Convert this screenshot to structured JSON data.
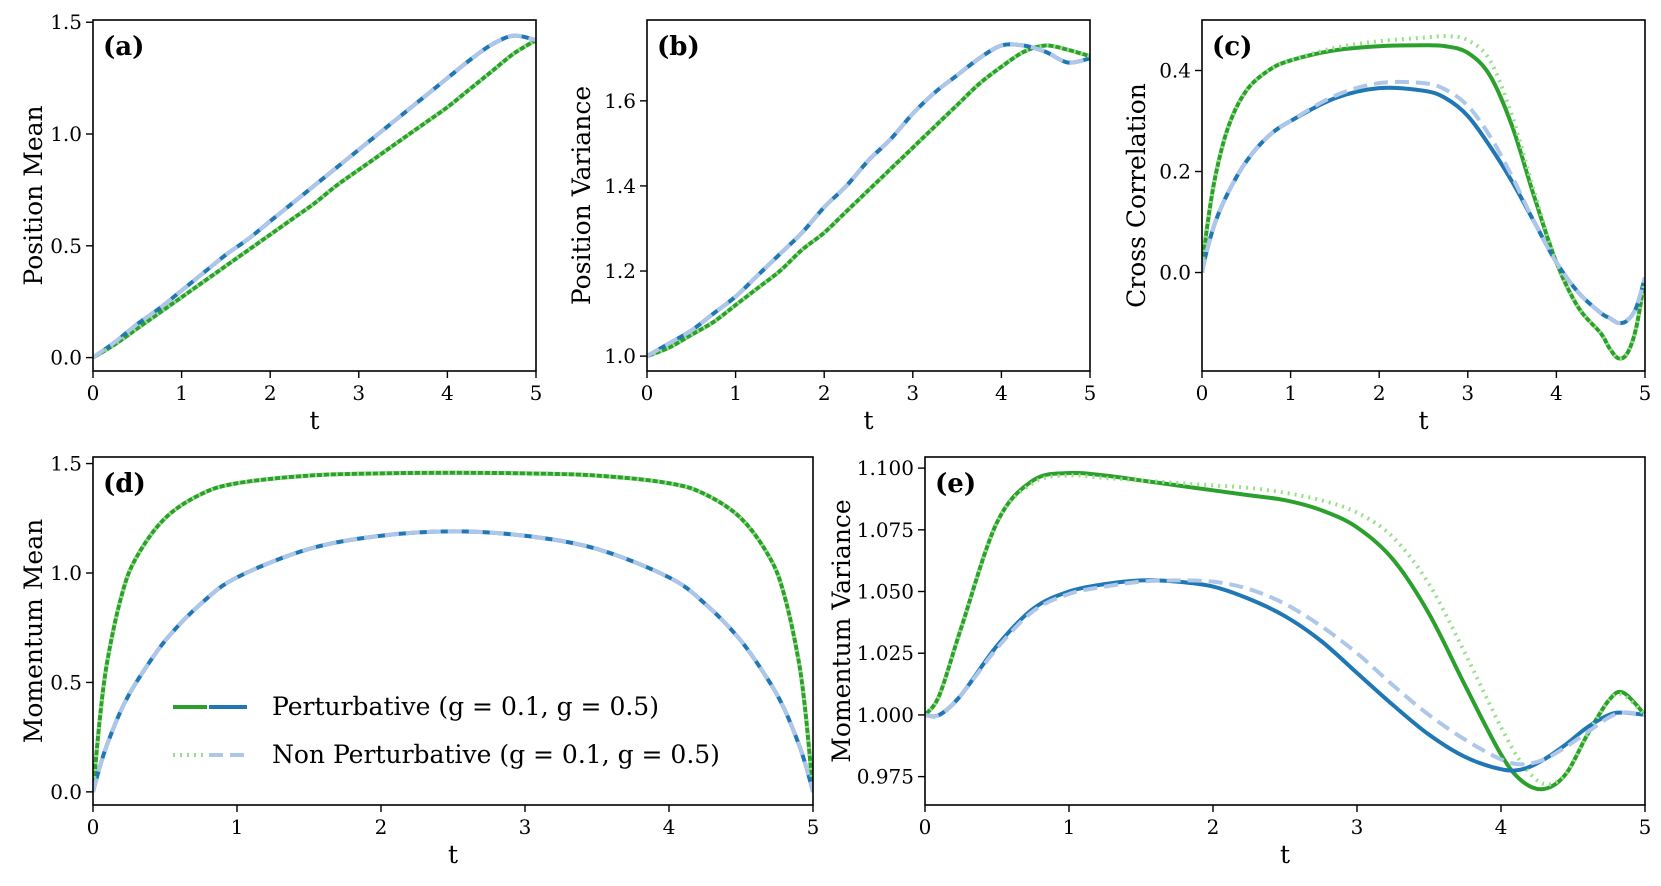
{
  "colors": {
    "pert_g01": "#2ca02c",
    "pert_g05": "#1f77b4",
    "np_g01": "#98df8a",
    "np_g05": "#aec7e8"
  },
  "legend": {
    "entries": [
      "Perturbative (g = 0.1, g = 0.5)",
      "Non Perturbative (g = 0.1, g = 0.5)"
    ]
  },
  "chart_data": [
    {
      "panel": "(a)",
      "type": "line",
      "xlabel": "t",
      "ylabel": "Position Mean",
      "xlim": [
        0,
        5
      ],
      "ylim": [
        -0.06,
        1.51
      ],
      "xticks": [
        0,
        1,
        2,
        3,
        4,
        5
      ],
      "yticks": [
        0.0,
        0.5,
        1.0,
        1.5
      ],
      "ytick_labels": [
        "0.0",
        "0.5",
        "1.0",
        "1.5"
      ],
      "x": [
        0,
        0.25,
        0.5,
        0.75,
        1,
        1.25,
        1.5,
        1.75,
        2,
        2.25,
        2.5,
        2.75,
        3,
        3.25,
        3.5,
        3.75,
        4,
        4.25,
        4.5,
        4.75,
        5
      ],
      "series": [
        {
          "name": "Perturbative g=0.1",
          "style": "solid",
          "color_key": "pert_g01",
          "values": [
            0,
            0.06,
            0.13,
            0.2,
            0.27,
            0.34,
            0.41,
            0.48,
            0.55,
            0.62,
            0.69,
            0.77,
            0.84,
            0.91,
            0.98,
            1.05,
            1.12,
            1.2,
            1.28,
            1.36,
            1.42
          ]
        },
        {
          "name": "Perturbative g=0.5",
          "style": "solid",
          "color_key": "pert_g05",
          "values": [
            0,
            0.07,
            0.15,
            0.22,
            0.3,
            0.38,
            0.46,
            0.53,
            0.61,
            0.69,
            0.77,
            0.85,
            0.93,
            1.01,
            1.09,
            1.17,
            1.25,
            1.33,
            1.4,
            1.44,
            1.42
          ]
        },
        {
          "name": "Non Perturbative g=0.1",
          "style": "dot",
          "color_key": "np_g01",
          "values": [
            0,
            0.06,
            0.13,
            0.2,
            0.27,
            0.34,
            0.41,
            0.48,
            0.55,
            0.62,
            0.69,
            0.77,
            0.84,
            0.91,
            0.98,
            1.05,
            1.12,
            1.2,
            1.28,
            1.36,
            1.42
          ]
        },
        {
          "name": "Non Perturbative g=0.5",
          "style": "dash",
          "color_key": "np_g05",
          "values": [
            0,
            0.07,
            0.15,
            0.22,
            0.3,
            0.38,
            0.46,
            0.53,
            0.61,
            0.69,
            0.77,
            0.85,
            0.93,
            1.01,
            1.09,
            1.17,
            1.25,
            1.33,
            1.4,
            1.44,
            1.42
          ]
        }
      ]
    },
    {
      "panel": "(b)",
      "type": "line",
      "xlabel": "t",
      "ylabel": "Position Variance",
      "xlim": [
        0,
        5
      ],
      "ylim": [
        0.965,
        1.79
      ],
      "xticks": [
        0,
        1,
        2,
        3,
        4,
        5
      ],
      "yticks": [
        1.0,
        1.2,
        1.4,
        1.6
      ],
      "ytick_labels": [
        "1.0",
        "1.2",
        "1.4",
        "1.6"
      ],
      "x": [
        0,
        0.25,
        0.5,
        0.75,
        1,
        1.25,
        1.5,
        1.75,
        2,
        2.25,
        2.5,
        2.75,
        3,
        3.25,
        3.5,
        3.75,
        4,
        4.25,
        4.5,
        4.75,
        5
      ],
      "series": [
        {
          "name": "Perturbative g=0.1",
          "style": "solid",
          "color_key": "pert_g01",
          "values": [
            1.0,
            1.02,
            1.05,
            1.08,
            1.12,
            1.16,
            1.2,
            1.25,
            1.29,
            1.34,
            1.39,
            1.44,
            1.49,
            1.54,
            1.59,
            1.64,
            1.68,
            1.715,
            1.73,
            1.72,
            1.705
          ]
        },
        {
          "name": "Perturbative g=0.5",
          "style": "solid",
          "color_key": "pert_g05",
          "values": [
            1.0,
            1.03,
            1.06,
            1.1,
            1.14,
            1.19,
            1.24,
            1.29,
            1.35,
            1.4,
            1.46,
            1.51,
            1.57,
            1.62,
            1.66,
            1.7,
            1.73,
            1.73,
            1.715,
            1.69,
            1.7
          ]
        },
        {
          "name": "Non Perturbative g=0.1",
          "style": "dot",
          "color_key": "np_g01",
          "values": [
            1.0,
            1.02,
            1.05,
            1.08,
            1.12,
            1.16,
            1.2,
            1.25,
            1.29,
            1.34,
            1.39,
            1.44,
            1.49,
            1.54,
            1.59,
            1.64,
            1.68,
            1.715,
            1.73,
            1.72,
            1.705
          ]
        },
        {
          "name": "Non Perturbative g=0.5",
          "style": "dash",
          "color_key": "np_g05",
          "values": [
            1.0,
            1.03,
            1.06,
            1.1,
            1.14,
            1.19,
            1.24,
            1.29,
            1.35,
            1.4,
            1.46,
            1.51,
            1.57,
            1.62,
            1.66,
            1.7,
            1.73,
            1.73,
            1.715,
            1.69,
            1.7
          ]
        }
      ]
    },
    {
      "panel": "(c)",
      "type": "line",
      "xlabel": "t",
      "ylabel": "Cross Correlation",
      "xlim": [
        0,
        5
      ],
      "ylim": [
        -0.195,
        0.5
      ],
      "xticks": [
        0,
        1,
        2,
        3,
        4,
        5
      ],
      "yticks": [
        0.0,
        0.2,
        0.4
      ],
      "ytick_labels": [
        "0.0",
        "0.2",
        "0.4"
      ],
      "x": [
        0,
        0.05,
        0.15,
        0.3,
        0.5,
        0.75,
        1,
        1.5,
        2,
        2.5,
        2.75,
        3,
        3.25,
        3.5,
        3.75,
        4,
        4.25,
        4.5,
        4.6,
        4.7,
        4.8,
        4.9,
        5
      ],
      "series": [
        {
          "name": "Perturbative g=0.1",
          "style": "solid",
          "color_key": "pert_g01",
          "values": [
            0,
            0.08,
            0.19,
            0.29,
            0.36,
            0.4,
            0.42,
            0.44,
            0.448,
            0.45,
            0.448,
            0.435,
            0.39,
            0.29,
            0.15,
            0.02,
            -0.07,
            -0.12,
            -0.15,
            -0.17,
            -0.16,
            -0.11,
            -0.01
          ]
        },
        {
          "name": "Perturbative g=0.5",
          "style": "solid",
          "color_key": "pert_g05",
          "values": [
            0,
            0.04,
            0.1,
            0.16,
            0.22,
            0.27,
            0.3,
            0.345,
            0.365,
            0.36,
            0.345,
            0.31,
            0.25,
            0.18,
            0.1,
            0.02,
            -0.04,
            -0.08,
            -0.09,
            -0.1,
            -0.095,
            -0.07,
            -0.01
          ]
        },
        {
          "name": "Non Perturbative g=0.1",
          "style": "dot",
          "color_key": "np_g01",
          "values": [
            0,
            0.08,
            0.19,
            0.29,
            0.36,
            0.4,
            0.42,
            0.445,
            0.458,
            0.465,
            0.468,
            0.46,
            0.42,
            0.31,
            0.16,
            0.02,
            -0.07,
            -0.12,
            -0.15,
            -0.17,
            -0.16,
            -0.11,
            -0.01
          ]
        },
        {
          "name": "Non Perturbative g=0.5",
          "style": "dash",
          "color_key": "np_g05",
          "values": [
            0,
            0.04,
            0.1,
            0.16,
            0.22,
            0.27,
            0.3,
            0.35,
            0.375,
            0.375,
            0.362,
            0.33,
            0.27,
            0.19,
            0.1,
            0.02,
            -0.04,
            -0.08,
            -0.09,
            -0.1,
            -0.095,
            -0.07,
            -0.01
          ]
        }
      ]
    },
    {
      "panel": "(d)",
      "type": "line",
      "xlabel": "t",
      "ylabel": "Momentum Mean",
      "xlim": [
        0,
        5
      ],
      "ylim": [
        -0.06,
        1.53
      ],
      "xticks": [
        0,
        1,
        2,
        3,
        4,
        5
      ],
      "yticks": [
        0.0,
        0.5,
        1.0,
        1.5
      ],
      "ytick_labels": [
        "0.0",
        "0.5",
        "1.0",
        "1.5"
      ],
      "x": [
        0,
        0.05,
        0.1,
        0.2,
        0.3,
        0.5,
        0.75,
        1,
        1.5,
        2,
        2.5,
        3,
        3.5,
        4,
        4.25,
        4.5,
        4.7,
        4.8,
        4.9,
        4.95,
        5
      ],
      "series": [
        {
          "name": "Perturbative g=0.1",
          "style": "solid",
          "color_key": "pert_g01",
          "values": [
            0,
            0.35,
            0.6,
            0.9,
            1.07,
            1.25,
            1.36,
            1.41,
            1.445,
            1.455,
            1.458,
            1.455,
            1.445,
            1.41,
            1.36,
            1.25,
            1.07,
            0.9,
            0.6,
            0.35,
            0
          ]
        },
        {
          "name": "Perturbative g=0.5",
          "style": "solid",
          "color_key": "pert_g05",
          "values": [
            0,
            0.12,
            0.22,
            0.38,
            0.5,
            0.69,
            0.86,
            0.98,
            1.11,
            1.17,
            1.19,
            1.17,
            1.11,
            0.98,
            0.86,
            0.69,
            0.5,
            0.38,
            0.22,
            0.12,
            0
          ]
        },
        {
          "name": "Non Perturbative g=0.1",
          "style": "dot",
          "color_key": "np_g01",
          "values": [
            0,
            0.35,
            0.6,
            0.9,
            1.07,
            1.25,
            1.36,
            1.41,
            1.445,
            1.455,
            1.458,
            1.455,
            1.445,
            1.41,
            1.36,
            1.25,
            1.07,
            0.9,
            0.6,
            0.35,
            0
          ]
        },
        {
          "name": "Non Perturbative g=0.5",
          "style": "dash",
          "color_key": "np_g05",
          "values": [
            0,
            0.12,
            0.22,
            0.38,
            0.5,
            0.69,
            0.86,
            0.98,
            1.11,
            1.17,
            1.19,
            1.17,
            1.11,
            0.98,
            0.86,
            0.69,
            0.5,
            0.38,
            0.22,
            0.12,
            0
          ]
        }
      ]
    },
    {
      "panel": "(e)",
      "type": "line",
      "xlabel": "t",
      "ylabel": "Momentum Variance",
      "xlim": [
        0,
        5
      ],
      "ylim": [
        0.9635,
        1.1045
      ],
      "xticks": [
        0,
        1,
        2,
        3,
        4,
        5
      ],
      "yticks": [
        0.975,
        1.0,
        1.025,
        1.05,
        1.075,
        1.1
      ],
      "ytick_labels": [
        "0.975",
        "1.000",
        "1.025",
        "1.050",
        "1.075",
        "1.100"
      ],
      "x": [
        0,
        0.1,
        0.25,
        0.5,
        0.75,
        1,
        1.25,
        1.5,
        1.75,
        2,
        2.25,
        2.5,
        2.75,
        3,
        3.25,
        3.5,
        3.75,
        4,
        4.15,
        4.3,
        4.45,
        4.6,
        4.75,
        4.85,
        5
      ],
      "series": [
        {
          "name": "Perturbative g=0.1",
          "style": "solid",
          "color_key": "pert_g01",
          "values": [
            1.0,
            1.008,
            1.035,
            1.078,
            1.095,
            1.098,
            1.097,
            1.095,
            1.093,
            1.091,
            1.089,
            1.087,
            1.083,
            1.076,
            1.063,
            1.041,
            1.012,
            0.984,
            0.973,
            0.97,
            0.976,
            0.992,
            1.006,
            1.009,
            1.0
          ]
        },
        {
          "name": "Perturbative g=0.5",
          "style": "solid",
          "color_key": "pert_g05",
          "values": [
            1.0,
            1.0,
            1.008,
            1.028,
            1.043,
            1.05,
            1.053,
            1.0545,
            1.054,
            1.052,
            1.047,
            1.04,
            1.03,
            1.017,
            1.004,
            0.992,
            0.983,
            0.978,
            0.978,
            0.982,
            0.988,
            0.995,
            1.0,
            1.001,
            1.0
          ]
        },
        {
          "name": "Non Perturbative g=0.1",
          "style": "dot",
          "color_key": "np_g01",
          "values": [
            1.0,
            1.008,
            1.035,
            1.078,
            1.094,
            1.097,
            1.096,
            1.095,
            1.094,
            1.093,
            1.092,
            1.09,
            1.087,
            1.082,
            1.072,
            1.053,
            1.025,
            0.995,
            0.98,
            0.972,
            0.976,
            0.992,
            1.006,
            1.008,
            1.0
          ]
        },
        {
          "name": "Non Perturbative g=0.5",
          "style": "dash",
          "color_key": "np_g05",
          "values": [
            1.0,
            1.0,
            1.008,
            1.027,
            1.042,
            1.049,
            1.052,
            1.054,
            1.0545,
            1.054,
            1.051,
            1.045,
            1.036,
            1.025,
            1.012,
            1.0,
            0.99,
            0.982,
            0.98,
            0.982,
            0.987,
            0.993,
            0.999,
            1.001,
            1.0
          ]
        }
      ]
    }
  ]
}
